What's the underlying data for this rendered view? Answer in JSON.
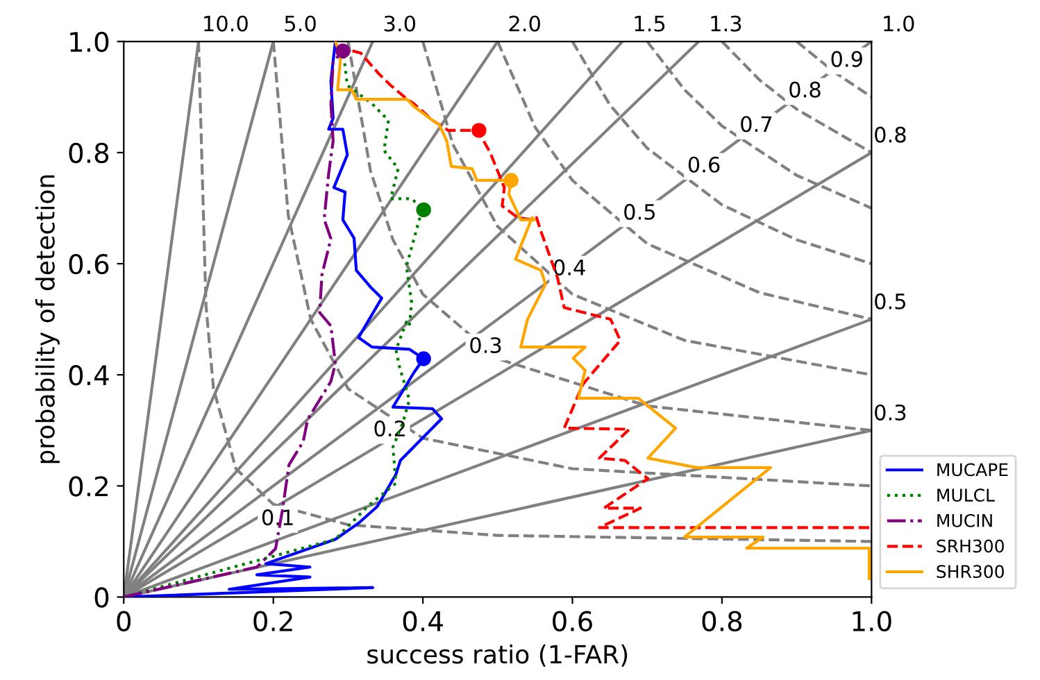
{
  "chart_data": {
    "type": "line",
    "xlabel": "success ratio (1-FAR)",
    "ylabel": "probability of detection",
    "xlim": [
      0,
      1
    ],
    "ylim": [
      0,
      1
    ],
    "xticks": [
      0,
      0.2,
      0.4,
      0.6,
      0.8,
      {
        "value": 1,
        "label": "1.0"
      }
    ],
    "yticks": [
      0,
      0.2,
      0.4,
      0.6,
      0.8,
      {
        "value": 1,
        "label": "1.0"
      }
    ],
    "grid": false,
    "legend": "right",
    "series": [
      {
        "color": "#808080",
        "line_style": "solid",
        "x": [
          0,
          0.1
        ],
        "values": [
          0,
          1
        ]
      },
      {
        "color": "#808080",
        "line_style": "solid",
        "x": [
          0,
          0.2
        ],
        "values": [
          0,
          1
        ]
      },
      {
        "color": "#808080",
        "line_style": "solid",
        "x": [
          0,
          0.333
        ],
        "values": [
          0,
          1
        ]
      },
      {
        "color": "#808080",
        "line_style": "solid",
        "x": [
          0,
          0.5
        ],
        "values": [
          0,
          1
        ]
      },
      {
        "color": "#808080",
        "line_style": "solid",
        "x": [
          0,
          0.667
        ],
        "values": [
          0,
          1
        ]
      },
      {
        "color": "#808080",
        "line_style": "solid",
        "x": [
          0,
          0.769
        ],
        "values": [
          0,
          1
        ]
      },
      {
        "color": "#808080",
        "line_style": "solid",
        "x": [
          0,
          1
        ],
        "values": [
          0,
          1
        ]
      },
      {
        "color": "#808080",
        "line_style": "solid",
        "x": [
          0,
          1
        ],
        "values": [
          0,
          0.8
        ]
      },
      {
        "color": "#808080",
        "line_style": "solid",
        "x": [
          0,
          1
        ],
        "values": [
          0,
          0.5
        ]
      },
      {
        "color": "#808080",
        "line_style": "solid",
        "x": [
          0,
          1
        ],
        "values": [
          0,
          0.3
        ]
      },
      {
        "color": "#808080",
        "line_style": "dashed",
        "x": [
          0.1,
          0.11,
          0.12,
          0.15,
          0.2,
          0.3,
          0.5,
          1
        ],
        "values": [
          1,
          0.524,
          0.375,
          0.231,
          0.167,
          0.13,
          0.111,
          0.1
        ]
      },
      {
        "color": "#808080",
        "line_style": "dashed",
        "x": [
          0.2,
          0.22,
          0.25,
          0.3,
          0.4,
          0.6,
          1
        ],
        "values": [
          1,
          0.687,
          0.5,
          0.375,
          0.286,
          0.231,
          0.2
        ]
      },
      {
        "color": "#808080",
        "line_style": "dashed",
        "x": [
          0.3,
          0.33,
          0.36,
          0.4,
          0.5,
          0.7,
          1
        ],
        "values": [
          1,
          0.767,
          0.643,
          0.545,
          0.429,
          0.344,
          0.3
        ]
      },
      {
        "color": "#808080",
        "line_style": "dashed",
        "x": [
          0.4,
          0.44,
          0.5,
          0.6,
          0.75,
          1
        ],
        "values": [
          1,
          0.815,
          0.667,
          0.545,
          0.462,
          0.4
        ]
      },
      {
        "color": "#808080",
        "line_style": "dashed",
        "x": [
          0.5,
          0.55,
          0.6,
          0.7,
          0.85,
          1
        ],
        "values": [
          1,
          0.846,
          0.75,
          0.636,
          0.548,
          0.5
        ]
      },
      {
        "color": "#808080",
        "line_style": "dashed",
        "x": [
          0.6,
          0.65,
          0.7,
          0.8,
          0.9,
          1
        ],
        "values": [
          1,
          0.886,
          0.808,
          0.706,
          0.643,
          0.6
        ]
      },
      {
        "color": "#808080",
        "line_style": "dashed",
        "x": [
          0.7,
          0.75,
          0.8,
          0.9,
          1
        ],
        "values": [
          1,
          0.913,
          0.848,
          0.759,
          0.7
        ]
      },
      {
        "color": "#808080",
        "line_style": "dashed",
        "x": [
          0.8,
          0.85,
          0.9,
          1
        ],
        "values": [
          1,
          0.931,
          0.878,
          0.8
        ]
      },
      {
        "color": "#808080",
        "line_style": "dashed",
        "x": [
          0.9,
          0.95,
          1
        ],
        "values": [
          1,
          0.945,
          0.9
        ]
      },
      {
        "name": "MUCAPE",
        "color": "#0000ff",
        "line_style": "solid",
        "x": [
          0,
          0.333,
          0.141,
          0.249,
          0.178,
          0.249,
          0.19,
          0.283,
          0.314,
          0.339,
          0.364,
          0.37,
          0.425,
          0.413,
          0.36,
          0.388,
          0.401,
          0.382,
          0.332,
          0.314,
          0.323,
          0.345,
          0.33,
          0.311,
          0.308,
          0.293,
          0.296,
          0.281,
          0.299,
          0.293,
          0.274,
          0.28,
          0.277,
          0.283
        ],
        "values": [
          0,
          0.017,
          0.014,
          0.036,
          0.04,
          0.054,
          0.06,
          0.104,
          0.133,
          0.163,
          0.221,
          0.246,
          0.321,
          0.339,
          0.342,
          0.404,
          0.429,
          0.446,
          0.45,
          0.467,
          0.488,
          0.538,
          0.558,
          0.588,
          0.646,
          0.679,
          0.729,
          0.737,
          0.796,
          0.842,
          0.842,
          0.862,
          0.929,
          1.0
        ]
      },
      {
        "name": "MULCL",
        "color": "#008000",
        "line_style": "dotted",
        "x": [
          0,
          0.283,
          0.326,
          0.364,
          0.36,
          0.373,
          0.382,
          0.369,
          0.364,
          0.378,
          0.382,
          0.385,
          0.378,
          0.397,
          0.401,
          0.385,
          0.357,
          0.367,
          0.348,
          0.354,
          0.332,
          0.299,
          0.293
        ],
        "values": [
          0,
          0.104,
          0.163,
          0.205,
          0.27,
          0.313,
          0.355,
          0.413,
          0.445,
          0.495,
          0.488,
          0.53,
          0.595,
          0.688,
          0.697,
          0.717,
          0.717,
          0.771,
          0.804,
          0.858,
          0.888,
          0.921,
          0.988
        ]
      },
      {
        "name": "MUCIN",
        "color": "#800080",
        "line_style": "dashdot",
        "x": [
          0,
          0.178,
          0.203,
          0.212,
          0.221,
          0.24,
          0.246,
          0.277,
          0.283,
          0.277,
          0.262,
          0.265,
          0.277,
          0.268,
          0.274,
          0.28,
          0.277,
          0.28,
          0.293
        ],
        "values": [
          0,
          0.054,
          0.087,
          0.155,
          0.238,
          0.28,
          0.32,
          0.388,
          0.42,
          0.488,
          0.512,
          0.58,
          0.645,
          0.68,
          0.762,
          0.821,
          0.888,
          0.963,
          0.983
        ]
      },
      {
        "name": "SRH300",
        "color": "#ff0000",
        "line_style": "dashed",
        "x": [
          0.997,
          0.636,
          0.691,
          0.642,
          0.701,
          0.67,
          0.636,
          0.676,
          0.589,
          0.614,
          0.664,
          0.651,
          0.589,
          0.58,
          0.558,
          0.552,
          0.546,
          0.527,
          0.506,
          0.509,
          0.49,
          0.478,
          0.475,
          0.434,
          0.413,
          0.388,
          0.379,
          0.357,
          0.341,
          0.317,
          0.293
        ],
        "values": [
          0.125,
          0.125,
          0.16,
          0.16,
          0.213,
          0.246,
          0.25,
          0.302,
          0.304,
          0.383,
          0.462,
          0.5,
          0.521,
          0.575,
          0.658,
          0.683,
          0.679,
          0.683,
          0.704,
          0.737,
          0.8,
          0.829,
          0.84,
          0.84,
          0.858,
          0.888,
          0.896,
          0.921,
          0.942,
          0.979,
          0.988
        ]
      },
      {
        "name": "SHR300",
        "color": "#ffa500",
        "line_style": "solid",
        "x": [
          0.997,
          0.997,
          0.833,
          0.855,
          0.75,
          0.865,
          0.766,
          0.701,
          0.738,
          0.688,
          0.608,
          0.617,
          0.601,
          0.617,
          0.531,
          0.54,
          0.564,
          0.558,
          0.524,
          0.546,
          0.549,
          0.531,
          0.515,
          0.518,
          0.472,
          0.466,
          0.438,
          0.432,
          0.422,
          0.413,
          0.388,
          0.379,
          0.311,
          0.305,
          0.286,
          0.29,
          0.283
        ],
        "values": [
          0.033,
          0.088,
          0.088,
          0.108,
          0.108,
          0.233,
          0.233,
          0.25,
          0.304,
          0.358,
          0.358,
          0.408,
          0.43,
          0.45,
          0.45,
          0.5,
          0.563,
          0.588,
          0.608,
          0.683,
          0.679,
          0.679,
          0.725,
          0.75,
          0.75,
          0.771,
          0.775,
          0.821,
          0.85,
          0.858,
          0.883,
          0.896,
          0.896,
          0.913,
          0.913,
          0.971,
          1.0
        ]
      },
      {
        "type": "scatter",
        "marker": "circle",
        "color": "#0000ff",
        "x": [
          0.401
        ],
        "values": [
          0.429
        ]
      },
      {
        "type": "scatter",
        "marker": "circle",
        "color": "#008000",
        "x": [
          0.401
        ],
        "values": [
          0.697
        ]
      },
      {
        "type": "scatter",
        "marker": "circle",
        "color": "#800080",
        "x": [
          0.293
        ],
        "values": [
          0.983
        ]
      },
      {
        "type": "scatter",
        "marker": "circle",
        "color": "#ff0000",
        "x": [
          0.475
        ],
        "values": [
          0.84
        ]
      },
      {
        "type": "scatter",
        "marker": "circle",
        "color": "#ffa500",
        "x": [
          0.518
        ],
        "values": [
          0.75
        ]
      }
    ],
    "annotations": [
      {
        "text": "10.0",
        "x": 0.1,
        "y": 1
      },
      {
        "text": "5.0",
        "x": 0.2,
        "y": 1
      },
      {
        "text": "3.0",
        "x": 0.333,
        "y": 1
      },
      {
        "text": "2.0",
        "x": 0.5,
        "y": 1
      },
      {
        "text": "1.5",
        "x": 0.667,
        "y": 1
      },
      {
        "text": "1.3",
        "x": 0.769,
        "y": 1
      },
      {
        "text": "1.0",
        "x": 1,
        "y": 1
      },
      {
        "text": "0.8",
        "x": 1,
        "y": 0.8
      },
      {
        "text": "0.5",
        "x": 1,
        "y": 0.5
      },
      {
        "text": "0.3",
        "x": 1,
        "y": 0.3
      },
      {
        "text": "0.1",
        "x": 0.206,
        "y": 0.14
      },
      {
        "text": "0.2",
        "x": 0.356,
        "y": 0.3
      },
      {
        "text": "0.3",
        "x": 0.484,
        "y": 0.45
      },
      {
        "text": "0.4",
        "x": 0.596,
        "y": 0.59
      },
      {
        "text": "0.5",
        "x": 0.69,
        "y": 0.69
      },
      {
        "text": "0.6",
        "x": 0.776,
        "y": 0.775
      },
      {
        "text": "0.7",
        "x": 0.846,
        "y": 0.848
      },
      {
        "text": "0.8",
        "x": 0.911,
        "y": 0.91
      },
      {
        "text": "0.9",
        "x": 0.967,
        "y": 0.965
      }
    ]
  }
}
